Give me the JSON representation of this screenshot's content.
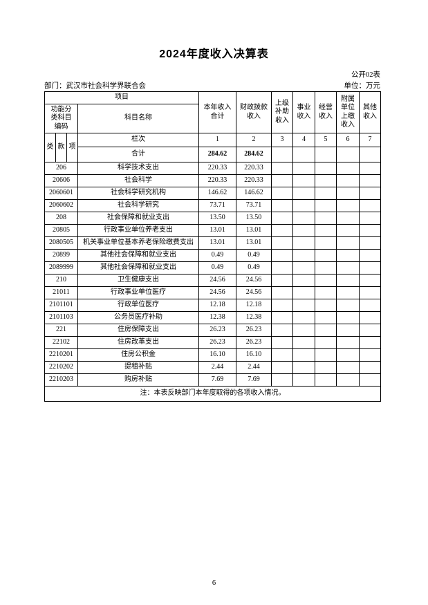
{
  "page": {
    "title": "2024年度收入决算表",
    "table_code": "公开02表",
    "department_label": "部门：武汉市社会科学界联合会",
    "unit_label": "单位：万元",
    "note": "注：本表反映部门本年度取得的各项收入情况。",
    "page_number": "6"
  },
  "table": {
    "header": {
      "project": "项目",
      "code_group": "功能分\n类科目\n编码",
      "code_sub": [
        "类",
        "款",
        "项"
      ],
      "subject_name": "科目名称",
      "columns": [
        "本年收入\n合计",
        "财政拨款\n收入",
        "上级\n补助\n收入",
        "事业\n收入",
        "经营\n收入",
        "附属\n单位\n上缴\n收入",
        "其他\n收入"
      ],
      "rank_label": "栏次",
      "rank_numbers": [
        "1",
        "2",
        "3",
        "4",
        "5",
        "6",
        "7"
      ],
      "total_label": "合计"
    },
    "total_row": {
      "values": [
        "284.62",
        "284.62",
        "",
        "",
        "",
        "",
        ""
      ]
    },
    "rows": [
      {
        "code": "206",
        "name": "科学技术支出",
        "values": [
          "220.33",
          "220.33",
          "",
          "",
          "",
          "",
          ""
        ]
      },
      {
        "code": "20606",
        "name": "社会科学",
        "values": [
          "220.33",
          "220.33",
          "",
          "",
          "",
          "",
          ""
        ]
      },
      {
        "code": "2060601",
        "name": "社会科学研究机构",
        "values": [
          "146.62",
          "146.62",
          "",
          "",
          "",
          "",
          ""
        ]
      },
      {
        "code": "2060602",
        "name": "社会科学研究",
        "values": [
          "73.71",
          "73.71",
          "",
          "",
          "",
          "",
          ""
        ]
      },
      {
        "code": "208",
        "name": "社会保障和就业支出",
        "values": [
          "13.50",
          "13.50",
          "",
          "",
          "",
          "",
          ""
        ]
      },
      {
        "code": "20805",
        "name": "行政事业单位养老支出",
        "values": [
          "13.01",
          "13.01",
          "",
          "",
          "",
          "",
          ""
        ]
      },
      {
        "code": "2080505",
        "name": "机关事业单位基本养老保险缴费支出",
        "values": [
          "13.01",
          "13.01",
          "",
          "",
          "",
          "",
          ""
        ]
      },
      {
        "code": "20899",
        "name": "其他社会保障和就业支出",
        "values": [
          "0.49",
          "0.49",
          "",
          "",
          "",
          "",
          ""
        ]
      },
      {
        "code": "2089999",
        "name": "其他社会保障和就业支出",
        "values": [
          "0.49",
          "0.49",
          "",
          "",
          "",
          "",
          ""
        ]
      },
      {
        "code": "210",
        "name": "卫生健康支出",
        "values": [
          "24.56",
          "24.56",
          "",
          "",
          "",
          "",
          ""
        ]
      },
      {
        "code": "21011",
        "name": "行政事业单位医疗",
        "values": [
          "24.56",
          "24.56",
          "",
          "",
          "",
          "",
          ""
        ]
      },
      {
        "code": "2101101",
        "name": "行政单位医疗",
        "values": [
          "12.18",
          "12.18",
          "",
          "",
          "",
          "",
          ""
        ]
      },
      {
        "code": "2101103",
        "name": "公务员医疗补助",
        "values": [
          "12.38",
          "12.38",
          "",
          "",
          "",
          "",
          ""
        ]
      },
      {
        "code": "221",
        "name": "住房保障支出",
        "values": [
          "26.23",
          "26.23",
          "",
          "",
          "",
          "",
          ""
        ]
      },
      {
        "code": "22102",
        "name": "住房改革支出",
        "values": [
          "26.23",
          "26.23",
          "",
          "",
          "",
          "",
          ""
        ]
      },
      {
        "code": "2210201",
        "name": "住房公积金",
        "values": [
          "16.10",
          "16.10",
          "",
          "",
          "",
          "",
          ""
        ]
      },
      {
        "code": "2210202",
        "name": "提租补贴",
        "values": [
          "2.44",
          "2.44",
          "",
          "",
          "",
          "",
          ""
        ]
      },
      {
        "code": "2210203",
        "name": "购房补贴",
        "values": [
          "7.69",
          "7.69",
          "",
          "",
          "",
          "",
          ""
        ]
      }
    ]
  }
}
